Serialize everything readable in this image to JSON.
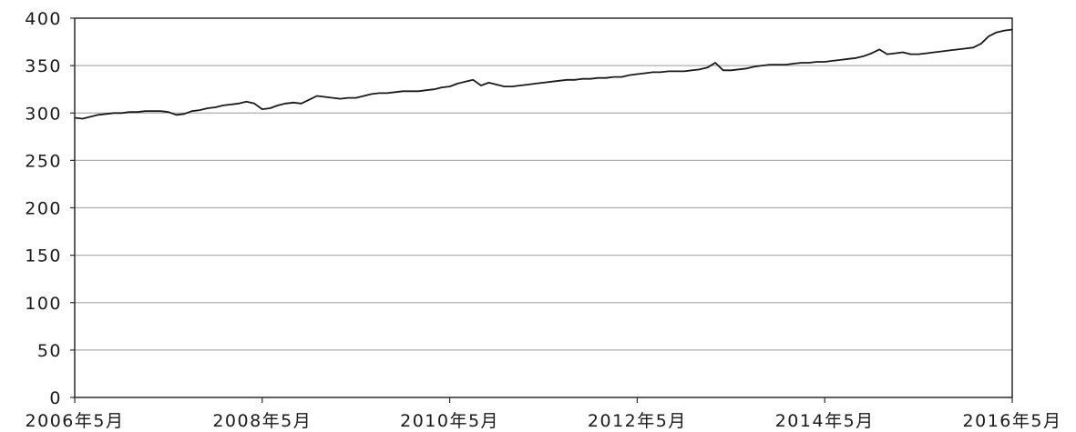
{
  "chart_data": {
    "type": "line",
    "xlim": [
      "2006-05",
      "2016-05"
    ],
    "ylim": [
      0,
      400
    ],
    "yticks": [
      0,
      50,
      100,
      150,
      200,
      250,
      300,
      350,
      400
    ],
    "ytick_labels": [
      "0",
      "50",
      "100",
      "150",
      "200",
      "250",
      "300",
      "350",
      "400"
    ],
    "xticks": [
      "2006-05",
      "2008-05",
      "2010-05",
      "2012-05",
      "2014-05",
      "2016-05"
    ],
    "xtick_labels": [
      "2006年5月",
      "2008年5月",
      "2010年5月",
      "2012年5月",
      "2014年5月",
      "2016年5月"
    ],
    "grid": true,
    "colors": {
      "line": "#1a1a1a",
      "grid": "#aeaeae",
      "axis": "#2a2a2a"
    },
    "series": [
      {
        "color": "#1a1a1a",
        "x": [
          "2006-05",
          "2006-06",
          "2006-07",
          "2006-08",
          "2006-09",
          "2006-10",
          "2006-11",
          "2006-12",
          "2007-01",
          "2007-02",
          "2007-03",
          "2007-04",
          "2007-05",
          "2007-06",
          "2007-07",
          "2007-08",
          "2007-09",
          "2007-10",
          "2007-11",
          "2007-12",
          "2008-01",
          "2008-02",
          "2008-03",
          "2008-04",
          "2008-05",
          "2008-06",
          "2008-07",
          "2008-08",
          "2008-09",
          "2008-10",
          "2008-11",
          "2008-12",
          "2009-01",
          "2009-02",
          "2009-03",
          "2009-04",
          "2009-05",
          "2009-06",
          "2009-07",
          "2009-08",
          "2009-09",
          "2009-10",
          "2009-11",
          "2009-12",
          "2010-01",
          "2010-02",
          "2010-03",
          "2010-04",
          "2010-05",
          "2010-06",
          "2010-07",
          "2010-08",
          "2010-09",
          "2010-10",
          "2010-11",
          "2010-12",
          "2011-01",
          "2011-02",
          "2011-03",
          "2011-04",
          "2011-05",
          "2011-06",
          "2011-07",
          "2011-08",
          "2011-09",
          "2011-10",
          "2011-11",
          "2011-12",
          "2012-01",
          "2012-02",
          "2012-03",
          "2012-04",
          "2012-05",
          "2012-06",
          "2012-07",
          "2012-08",
          "2012-09",
          "2012-10",
          "2012-11",
          "2012-12",
          "2013-01",
          "2013-02",
          "2013-03",
          "2013-04",
          "2013-05",
          "2013-06",
          "2013-07",
          "2013-08",
          "2013-09",
          "2013-10",
          "2013-11",
          "2013-12",
          "2014-01",
          "2014-02",
          "2014-03",
          "2014-04",
          "2014-05",
          "2014-06",
          "2014-07",
          "2014-08",
          "2014-09",
          "2014-10",
          "2014-11",
          "2014-12",
          "2015-01",
          "2015-02",
          "2015-03",
          "2015-04",
          "2015-05",
          "2015-06",
          "2015-07",
          "2015-08",
          "2015-09",
          "2015-10",
          "2015-11",
          "2015-12",
          "2016-01",
          "2016-02",
          "2016-03",
          "2016-04",
          "2016-05"
        ],
        "values": [
          295,
          294,
          296,
          298,
          299,
          300,
          300,
          301,
          301,
          302,
          302,
          302,
          301,
          298,
          299,
          302,
          303,
          305,
          306,
          308,
          309,
          310,
          312,
          310,
          304,
          305,
          308,
          310,
          311,
          310,
          314,
          318,
          317,
          316,
          315,
          316,
          316,
          318,
          320,
          321,
          321,
          322,
          323,
          323,
          323,
          324,
          325,
          327,
          328,
          331,
          333,
          335,
          329,
          332,
          330,
          328,
          328,
          329,
          330,
          331,
          332,
          333,
          334,
          335,
          335,
          336,
          336,
          337,
          337,
          338,
          338,
          340,
          341,
          342,
          343,
          343,
          344,
          344,
          344,
          345,
          346,
          348,
          353,
          345,
          345,
          346,
          347,
          349,
          350,
          351,
          351,
          351,
          352,
          353,
          353,
          354,
          354,
          355,
          356,
          357,
          358,
          360,
          363,
          367,
          362,
          363,
          364,
          362,
          362,
          363,
          364,
          365,
          366,
          367,
          368,
          369,
          373,
          381,
          385,
          387,
          388
        ]
      }
    ]
  }
}
